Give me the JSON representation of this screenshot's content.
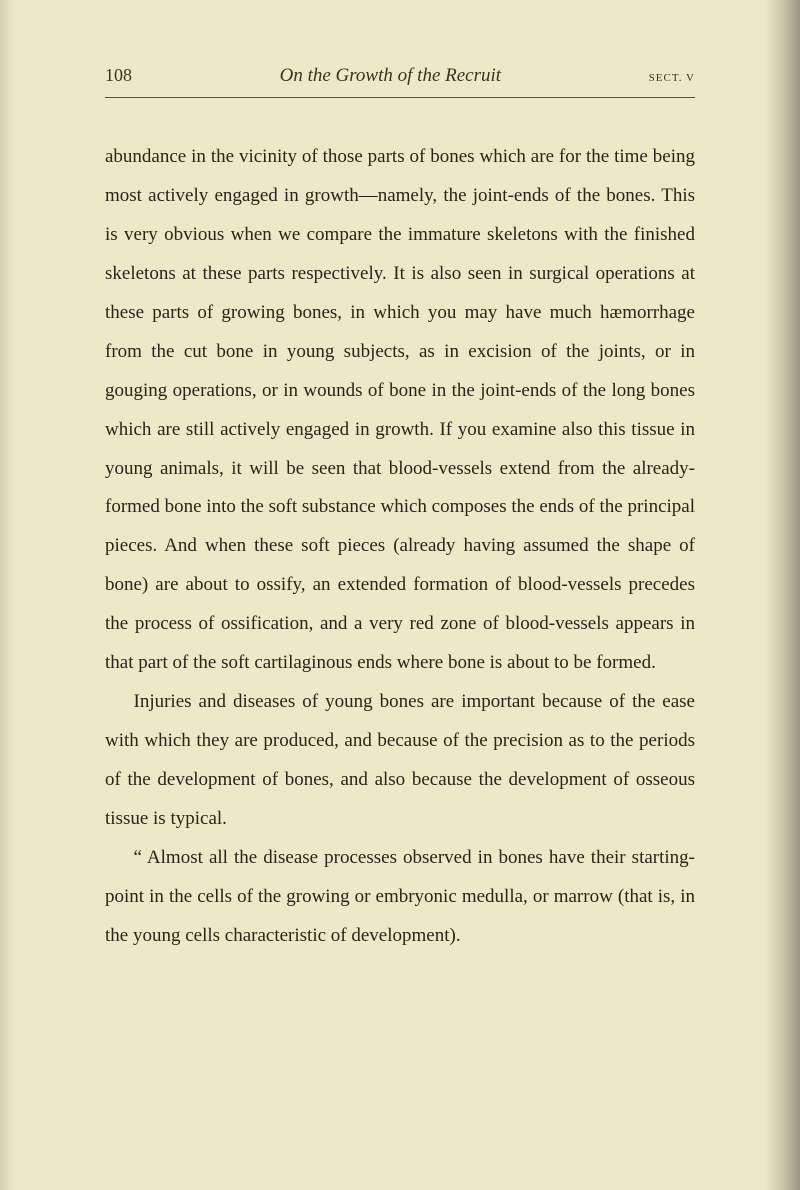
{
  "header": {
    "page_number": "108",
    "running_title": "On the Growth of the Recruit",
    "section_label": "SECT. V"
  },
  "paragraphs": [
    "abundance in the vicinity of those parts of bones which are for the time being most actively engaged in growth—namely, the joint-ends of the bones. This is very obvious when we compare the immature skeletons with the finished skeletons at these parts respectively. It is also seen in surgical operations at these parts of growing bones, in which you may have much hæmorrhage from the cut bone in young subjects, as in excision of the joints, or in gouging operations, or in wounds of bone in the joint-ends of the long bones which are still actively engaged in growth. If you examine also this tissue in young animals, it will be seen that blood-vessels extend from the already-formed bone into the soft substance which composes the ends of the principal pieces. And when these soft pieces (already having assumed the shape of bone) are about to ossify, an extended formation of blood-vessels precedes the process of ossification, and a very red zone of blood-vessels appears in that part of the soft cartilaginous ends where bone is about to be formed.",
    "Injuries and diseases of young bones are important because of the ease with which they are produced, and because of the precision as to the periods of the development of bones, and also because the develop­ment of osseous tissue is typical.",
    "“ Almost all the disease processes observed in bones have their starting-point in the cells of the growing or embryonic medulla, or marrow (that is, in the young cells characteristic of development)."
  ],
  "colors": {
    "page_background": "#ede8c8",
    "text_color": "#2a2418",
    "header_text": "#3a3220",
    "rule_color": "#5a513a"
  },
  "typography": {
    "body_font_size": 19,
    "body_line_height": 2.05,
    "header_font_size": 18,
    "title_font_size": 19,
    "section_font_size": 11
  }
}
